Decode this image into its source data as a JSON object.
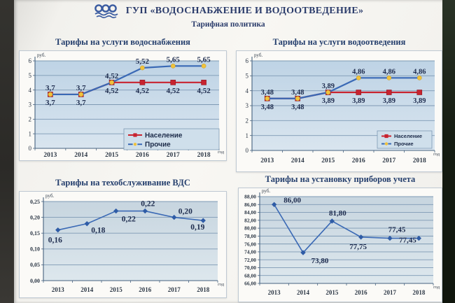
{
  "header": {
    "title": "ГУП «ВОДОСНАБЖЕНИЕ И ВОДООТВЕДЕНИЕ»",
    "subtitle": "Тарифная политика",
    "logo": "three-water-rings-with-waves"
  },
  "colors": {
    "title_text": "#2b3c6b",
    "population_series": "#c8232f",
    "others_series": "#3a69b5",
    "marker_yellow": "#f0c23c",
    "grid": "#7e99b4",
    "axis": "#46627f",
    "data_label": "#1e2c4e",
    "plot_bg_top": "#bed3e5",
    "plot_bg_bottom": "#d9e5ef"
  },
  "chart_data": [
    {
      "type": "line",
      "title": "Тарифы на услуги водоснабжения",
      "ylabel": "руб.",
      "xlabel": "год",
      "categories": [
        "2013",
        "2014",
        "2015",
        "2016",
        "2017",
        "2018"
      ],
      "ylim": [
        0,
        6
      ],
      "y_ticks": [
        "0",
        "1",
        "2",
        "3",
        "4",
        "5",
        "6"
      ],
      "grid": true,
      "legend": true,
      "legend_position": "inside-bottom-right",
      "series": [
        {
          "name": "Население",
          "color": "#c8232f",
          "marker": "square",
          "label_side": "below",
          "values": [
            3.7,
            3.7,
            4.52,
            4.52,
            4.52,
            4.52
          ],
          "labels": [
            "3,7",
            "3,7",
            "4,52",
            "4,52",
            "4,52",
            "4,52"
          ]
        },
        {
          "name": "Прочие",
          "color": "#3a69b5",
          "marker": "dot",
          "label_side": "above",
          "values": [
            3.7,
            3.7,
            4.52,
            5.52,
            5.65,
            5.65
          ],
          "labels": [
            "3,7",
            "3,7",
            "4,52",
            "5,52",
            "5,65",
            "5,65"
          ]
        }
      ]
    },
    {
      "type": "line",
      "title": "Тарифы на услуги водоотведения",
      "ylabel": "руб.",
      "xlabel": "год",
      "categories": [
        "2013",
        "2014",
        "2015",
        "2016",
        "2017",
        "2018"
      ],
      "ylim": [
        0,
        6
      ],
      "y_ticks": [
        "0",
        "1",
        "2",
        "3",
        "4",
        "5",
        "6"
      ],
      "grid": true,
      "legend": true,
      "legend_position": "inside-bottom-right",
      "series": [
        {
          "name": "Население",
          "color": "#c8232f",
          "marker": "square",
          "label_side": "below",
          "values": [
            3.48,
            3.48,
            3.89,
            3.89,
            3.89,
            3.89
          ],
          "labels": [
            "3,48",
            "3,48",
            "3,89",
            "3,89",
            "3,89",
            "3,89"
          ]
        },
        {
          "name": "Прочие",
          "color": "#3a69b5",
          "marker": "dot",
          "label_side": "above",
          "values": [
            3.48,
            3.48,
            3.89,
            4.86,
            4.86,
            4.86
          ],
          "labels": [
            "3,48",
            "3,48",
            "3,89",
            "4,86",
            "4,86",
            "4,86"
          ]
        }
      ]
    },
    {
      "type": "line",
      "title": "Тарифы на техобслуживание ВДС",
      "ylabel": "руб.",
      "xlabel": "год",
      "categories": [
        "2013",
        "2014",
        "2015",
        "2016",
        "2017",
        "2018"
      ],
      "ylim": [
        0,
        0.25
      ],
      "y_ticks": [
        "0,00",
        "0,05",
        "0,10",
        "0,15",
        "0,20",
        "0,25"
      ],
      "grid": true,
      "legend": false,
      "series": [
        {
          "color": "#3a69b5",
          "marker": "diamond",
          "values": [
            0.16,
            0.18,
            0.22,
            0.22,
            0.2,
            0.19
          ],
          "labels": [
            "0,16",
            "0,18",
            "0,22",
            "0,22",
            "0,20",
            "0,19"
          ],
          "label_offsets": [
            [
              -4,
              18
            ],
            [
              16,
              13
            ],
            [
              18,
              15
            ],
            [
              4,
              -7
            ],
            [
              16,
              -5
            ],
            [
              -8,
              13
            ]
          ]
        }
      ]
    },
    {
      "type": "line",
      "title": "Тарифы на установку приборов учета",
      "ylabel": "руб.",
      "xlabel": "год",
      "categories": [
        "2013",
        "2014",
        "2015",
        "2016",
        "2017",
        "2018"
      ],
      "ylim": [
        66,
        88
      ],
      "y_ticks": [
        "66,00",
        "68,00",
        "70,00",
        "72,00",
        "74,00",
        "76,00",
        "78,00",
        "80,00",
        "82,00",
        "84,00",
        "86,00",
        "88,00"
      ],
      "grid": true,
      "legend": false,
      "series": [
        {
          "color": "#3a69b5",
          "marker": "diamond",
          "values": [
            86.0,
            73.8,
            81.8,
            77.75,
            77.45,
            77.45
          ],
          "labels": [
            "86,00",
            "73,80",
            "81,80",
            "77,75",
            "77,45",
            "77,45"
          ],
          "label_offsets": [
            [
              26,
              -3
            ],
            [
              24,
              15
            ],
            [
              8,
              -8
            ],
            [
              -4,
              17
            ],
            [
              10,
              -9
            ],
            [
              -16,
              6
            ]
          ]
        }
      ]
    }
  ]
}
